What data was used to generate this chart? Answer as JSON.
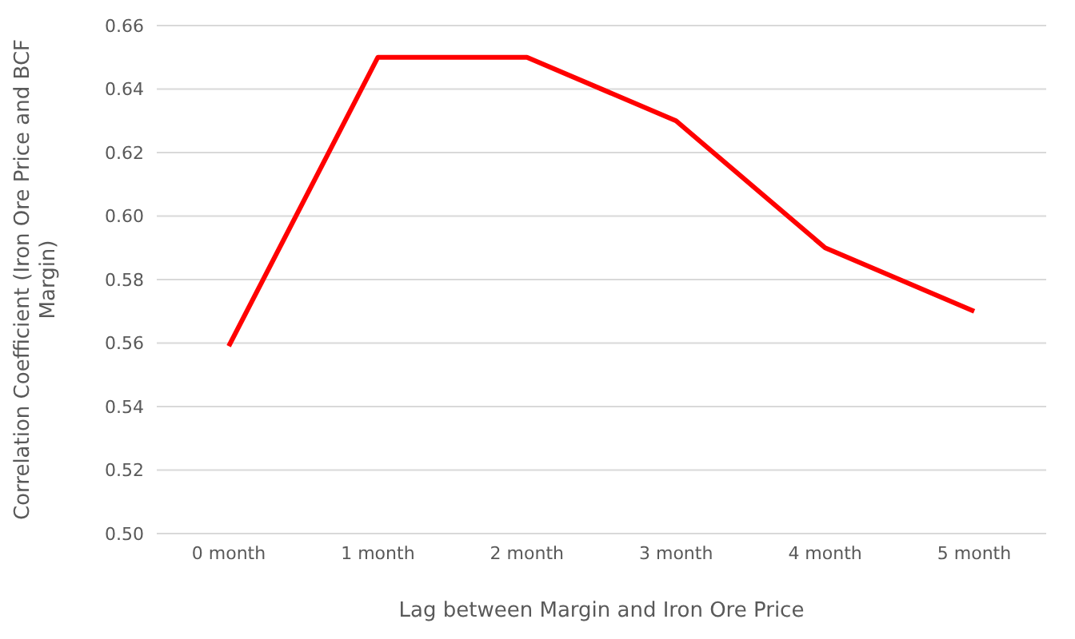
{
  "chart_data": {
    "type": "line",
    "xlabel": "Lag between Margin and Iron Ore Price",
    "ylabel": "Correlation Coefficient (Iron Ore Price and BCF Margin)",
    "categories": [
      "0 month",
      "1 month",
      "2 month",
      "3 month",
      "4 month",
      "5 month"
    ],
    "series": [
      {
        "color": "#ff0000",
        "values": [
          0.559,
          0.65,
          0.65,
          0.63,
          0.59,
          0.57
        ]
      }
    ],
    "ylim": [
      0.5,
      0.66
    ],
    "yticks": [
      {
        "value": 0.5,
        "label": "0.50"
      },
      0.52,
      0.54,
      0.56,
      0.58,
      {
        "value": 0.6,
        "label": "0.60"
      },
      0.62,
      0.64,
      0.66
    ],
    "grid": "y",
    "marker": "none",
    "line_style": "solid"
  }
}
